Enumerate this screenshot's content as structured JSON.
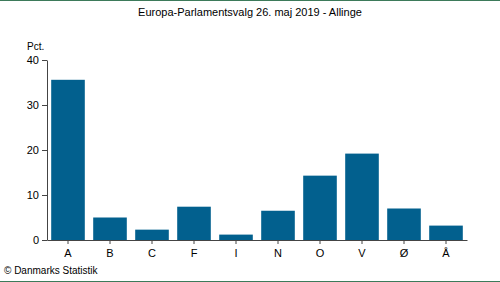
{
  "chart_data": {
    "type": "bar",
    "title": "Europa-Parlamentsvalg 26. maj 2019 - Allinge",
    "ylabel": "Pct.",
    "source": "© Danmarks Statistik",
    "categories": [
      "A",
      "B",
      "C",
      "F",
      "I",
      "N",
      "O",
      "V",
      "Ø",
      "Å"
    ],
    "values": [
      35.6,
      5.0,
      2.3,
      7.4,
      1.2,
      6.5,
      14.3,
      19.2,
      7.0,
      3.2
    ],
    "color": "#02608e",
    "ylim": [
      0,
      40
    ],
    "yticks": [
      0,
      10,
      20,
      30,
      40
    ],
    "grid": false
  }
}
